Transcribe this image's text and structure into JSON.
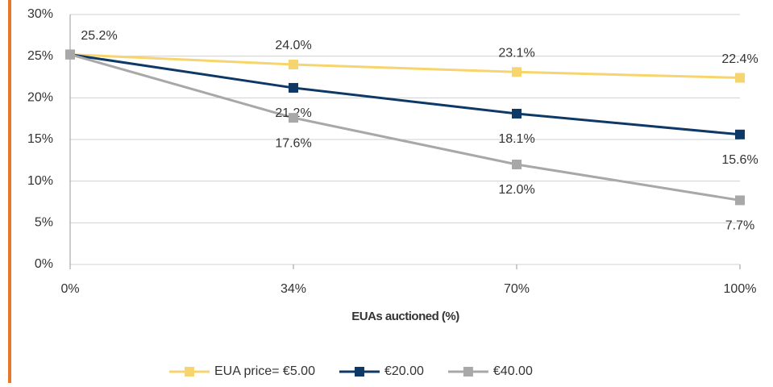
{
  "chart_data": {
    "type": "line",
    "x_label": "EUAs auctioned (%)",
    "categories": [
      "0%",
      "34%",
      "70%",
      "100%"
    ],
    "series": [
      {
        "name": "EUA price= €5.00",
        "color": "#f6d56f",
        "values": [
          25.2,
          24.0,
          23.1,
          22.4
        ],
        "value_labels": [
          "25.2%",
          "24.0%",
          "23.1%",
          "22.4%"
        ]
      },
      {
        "name": "€20.00",
        "color": "#0e3865",
        "values": [
          25.2,
          21.2,
          18.1,
          15.6
        ],
        "value_labels": [
          null,
          "21.2%",
          "18.1%",
          "15.6%"
        ]
      },
      {
        "name": "€40.00",
        "color": "#a8a8a8",
        "values": [
          25.2,
          17.6,
          12.0,
          7.7
        ],
        "value_labels": [
          null,
          "17.6%",
          "12.0%",
          "7.7%"
        ]
      }
    ],
    "ylim": [
      0,
      30
    ],
    "yticks": [
      {
        "value": 0,
        "label": "0%"
      },
      {
        "value": 5,
        "label": "5%"
      },
      {
        "value": 10,
        "label": "10%"
      },
      {
        "value": 15,
        "label": "15%"
      },
      {
        "value": 20,
        "label": "20%"
      },
      {
        "value": 25,
        "label": "25%"
      },
      {
        "value": 30,
        "label": "30%"
      }
    ],
    "grid": true,
    "legend": "bottom"
  }
}
